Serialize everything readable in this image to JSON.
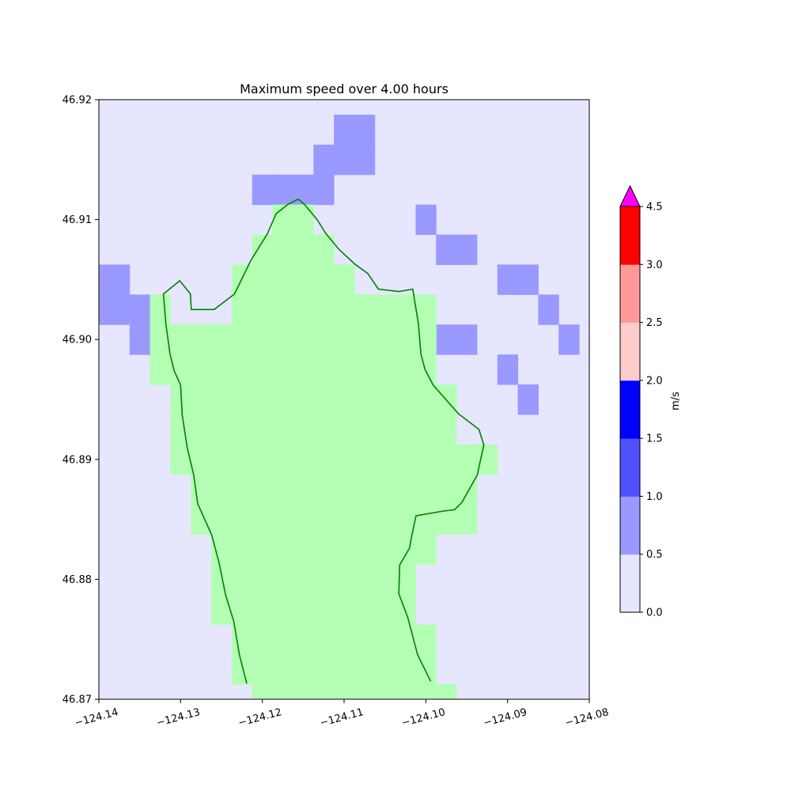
{
  "chart_data": {
    "type": "heatmap",
    "title": "Maximum speed over 4.00 hours",
    "xlabel": "",
    "ylabel": "",
    "xlim": [
      -124.14,
      -124.08
    ],
    "ylim": [
      46.87,
      46.92
    ],
    "x_ticks": [
      -124.14,
      -124.13,
      -124.12,
      -124.11,
      -124.1,
      -124.09,
      -124.08
    ],
    "x_tick_labels": [
      "−124.14",
      "−124.13",
      "−124.12",
      "−124.11",
      "−124.10",
      "−124.09",
      "−124.08"
    ],
    "y_ticks": [
      46.87,
      46.88,
      46.89,
      46.9,
      46.91,
      46.92
    ],
    "y_tick_labels": [
      "46.87",
      "46.88",
      "46.89",
      "46.90",
      "46.91",
      "46.92"
    ],
    "grid": false,
    "cell_size_lon": 0.0025,
    "cell_size_lat": 0.0025,
    "land_color": "#b3ffb3",
    "default_level": 0,
    "speed_cells": [
      {
        "lon": -124.11,
        "lat": 46.9175,
        "level": 1
      },
      {
        "lon": -124.1075,
        "lat": 46.9175,
        "level": 1
      },
      {
        "lon": -124.1125,
        "lat": 46.915,
        "level": 1
      },
      {
        "lon": -124.11,
        "lat": 46.915,
        "level": 1
      },
      {
        "lon": -124.1075,
        "lat": 46.915,
        "level": 1
      },
      {
        "lon": -124.12,
        "lat": 46.9125,
        "level": 1
      },
      {
        "lon": -124.1175,
        "lat": 46.9125,
        "level": 1
      },
      {
        "lon": -124.115,
        "lat": 46.9125,
        "level": 1
      },
      {
        "lon": -124.1125,
        "lat": 46.9125,
        "level": 1
      },
      {
        "lon": -124.1,
        "lat": 46.91,
        "level": 1
      },
      {
        "lon": -124.0975,
        "lat": 46.9075,
        "level": 1
      },
      {
        "lon": -124.095,
        "lat": 46.9075,
        "level": 1
      },
      {
        "lon": -124.14,
        "lat": 46.905,
        "level": 1
      },
      {
        "lon": -124.1375,
        "lat": 46.905,
        "level": 1
      },
      {
        "lon": -124.09,
        "lat": 46.905,
        "level": 1
      },
      {
        "lon": -124.0875,
        "lat": 46.905,
        "level": 1
      },
      {
        "lon": -124.14,
        "lat": 46.9025,
        "level": 1
      },
      {
        "lon": -124.1375,
        "lat": 46.9025,
        "level": 1
      },
      {
        "lon": -124.135,
        "lat": 46.9025,
        "level": 1
      },
      {
        "lon": -124.085,
        "lat": 46.9025,
        "level": 1
      },
      {
        "lon": -124.135,
        "lat": 46.9,
        "level": 1
      },
      {
        "lon": -124.0975,
        "lat": 46.9,
        "level": 1
      },
      {
        "lon": -124.095,
        "lat": 46.9,
        "level": 1
      },
      {
        "lon": -124.0825,
        "lat": 46.9,
        "level": 1
      },
      {
        "lon": -124.09,
        "lat": 46.8975,
        "level": 1
      },
      {
        "lon": -124.0875,
        "lat": 46.895,
        "level": 1
      }
    ],
    "land_cells": [
      {
        "row": 46.91,
        "lon_from": -124.1175,
        "lon_to": -124.115
      },
      {
        "row": 46.9075,
        "lon_from": -124.12,
        "lon_to": -124.1125
      },
      {
        "row": 46.905,
        "lon_from": -124.1225,
        "lon_to": -124.11
      },
      {
        "row": 46.9025,
        "lon_from": -124.1225,
        "lon_to": -124.105
      },
      {
        "row": 46.9025,
        "lon_from": -124.1025,
        "lon_to": -124.1
      },
      {
        "row": 46.9025,
        "lon_from": -124.1325,
        "lon_to": -124.1325
      },
      {
        "row": 46.9,
        "lon_from": -124.1325,
        "lon_to": -124.1
      },
      {
        "row": 46.8975,
        "lon_from": -124.1325,
        "lon_to": -124.1
      },
      {
        "row": 46.895,
        "lon_from": -124.13,
        "lon_to": -124.0975
      },
      {
        "row": 46.8925,
        "lon_from": -124.13,
        "lon_to": -124.0975
      },
      {
        "row": 46.89,
        "lon_from": -124.13,
        "lon_to": -124.0925
      },
      {
        "row": 46.8875,
        "lon_from": -124.1275,
        "lon_to": -124.095
      },
      {
        "row": 46.885,
        "lon_from": -124.1275,
        "lon_to": -124.095
      },
      {
        "row": 46.8825,
        "lon_from": -124.125,
        "lon_to": -124.1
      },
      {
        "row": 46.88,
        "lon_from": -124.125,
        "lon_to": -124.1025
      },
      {
        "row": 46.8775,
        "lon_from": -124.125,
        "lon_to": -124.1025
      },
      {
        "row": 46.875,
        "lon_from": -124.1225,
        "lon_to": -124.1
      },
      {
        "row": 46.8725,
        "lon_from": -124.1225,
        "lon_to": -124.1
      },
      {
        "row": 46.87,
        "lon_from": -124.12,
        "lon_to": -124.0975
      }
    ],
    "coastline": [
      [
        -124.1219,
        46.8713
      ],
      [
        -124.1228,
        46.8737
      ],
      [
        -124.1235,
        46.8765
      ],
      [
        -124.1245,
        46.8787
      ],
      [
        -124.1253,
        46.8814
      ],
      [
        -124.1262,
        46.8837
      ],
      [
        -124.1279,
        46.8863
      ],
      [
        -124.1284,
        46.8887
      ],
      [
        -124.1292,
        46.891
      ],
      [
        -124.1298,
        46.8937
      ],
      [
        -124.13,
        46.8962
      ],
      [
        -124.1308,
        46.8974
      ],
      [
        -124.1313,
        46.8988
      ],
      [
        -124.1318,
        46.9013
      ],
      [
        -124.1321,
        46.9038
      ],
      [
        -124.1301,
        46.9049
      ],
      [
        -124.1288,
        46.9038
      ],
      [
        -124.1287,
        46.9025
      ],
      [
        -124.1259,
        46.9025
      ],
      [
        -124.1234,
        46.9038
      ],
      [
        -124.1214,
        46.9066
      ],
      [
        -124.1194,
        46.9088
      ],
      [
        -124.1183,
        46.9105
      ],
      [
        -124.1168,
        46.9113
      ],
      [
        -124.1156,
        46.9117
      ],
      [
        -124.1149,
        46.9113
      ],
      [
        -124.1133,
        46.91
      ],
      [
        -124.1122,
        46.9088
      ],
      [
        -124.1106,
        46.9075
      ],
      [
        -124.1087,
        46.9063
      ],
      [
        -124.1071,
        46.9055
      ],
      [
        -124.1058,
        46.9042
      ],
      [
        -124.1033,
        46.904
      ],
      [
        -124.1016,
        46.9042
      ],
      [
        -124.1009,
        46.9013
      ],
      [
        -124.1006,
        46.8988
      ],
      [
        -124.1001,
        46.8975
      ],
      [
        -124.0991,
        46.8962
      ],
      [
        -124.096,
        46.8938
      ],
      [
        -124.0935,
        46.8925
      ],
      [
        -124.0929,
        46.8912
      ],
      [
        -124.0933,
        46.89
      ],
      [
        -124.0937,
        46.8887
      ],
      [
        -124.0956,
        46.8864
      ],
      [
        -124.0965,
        46.8858
      ],
      [
        -124.0978,
        46.8857
      ],
      [
        -124.1012,
        46.8853
      ],
      [
        -124.1017,
        46.8837
      ],
      [
        -124.102,
        46.8826
      ],
      [
        -124.1032,
        46.8812
      ],
      [
        -124.1033,
        46.8788
      ],
      [
        -124.1022,
        46.8768
      ],
      [
        -124.101,
        46.8737
      ],
      [
        -124.0994,
        46.8715
      ]
    ],
    "colorbar": {
      "label": "m/s",
      "ticks": [
        0.0,
        0.5,
        1.0,
        1.5,
        2.0,
        2.5,
        3.0,
        4.5
      ],
      "tick_labels": [
        "0.0",
        "0.5",
        "1.0",
        "1.5",
        "2.0",
        "2.5",
        "3.0",
        "4.5"
      ],
      "extend": "max",
      "over_color": "#ff00ff",
      "levels": [
        {
          "from": 0.0,
          "to": 0.5,
          "color": "#e6e6ff"
        },
        {
          "from": 0.5,
          "to": 1.0,
          "color": "#9999ff"
        },
        {
          "from": 1.0,
          "to": 1.5,
          "color": "#5050ff"
        },
        {
          "from": 1.5,
          "to": 2.0,
          "color": "#0000ff"
        },
        {
          "from": 2.0,
          "to": 2.5,
          "color": "#ffcccc"
        },
        {
          "from": 2.5,
          "to": 3.0,
          "color": "#ff9999"
        },
        {
          "from": 3.0,
          "to": 4.5,
          "color": "#ff0000"
        }
      ]
    },
    "coastline_color": "#008000"
  }
}
